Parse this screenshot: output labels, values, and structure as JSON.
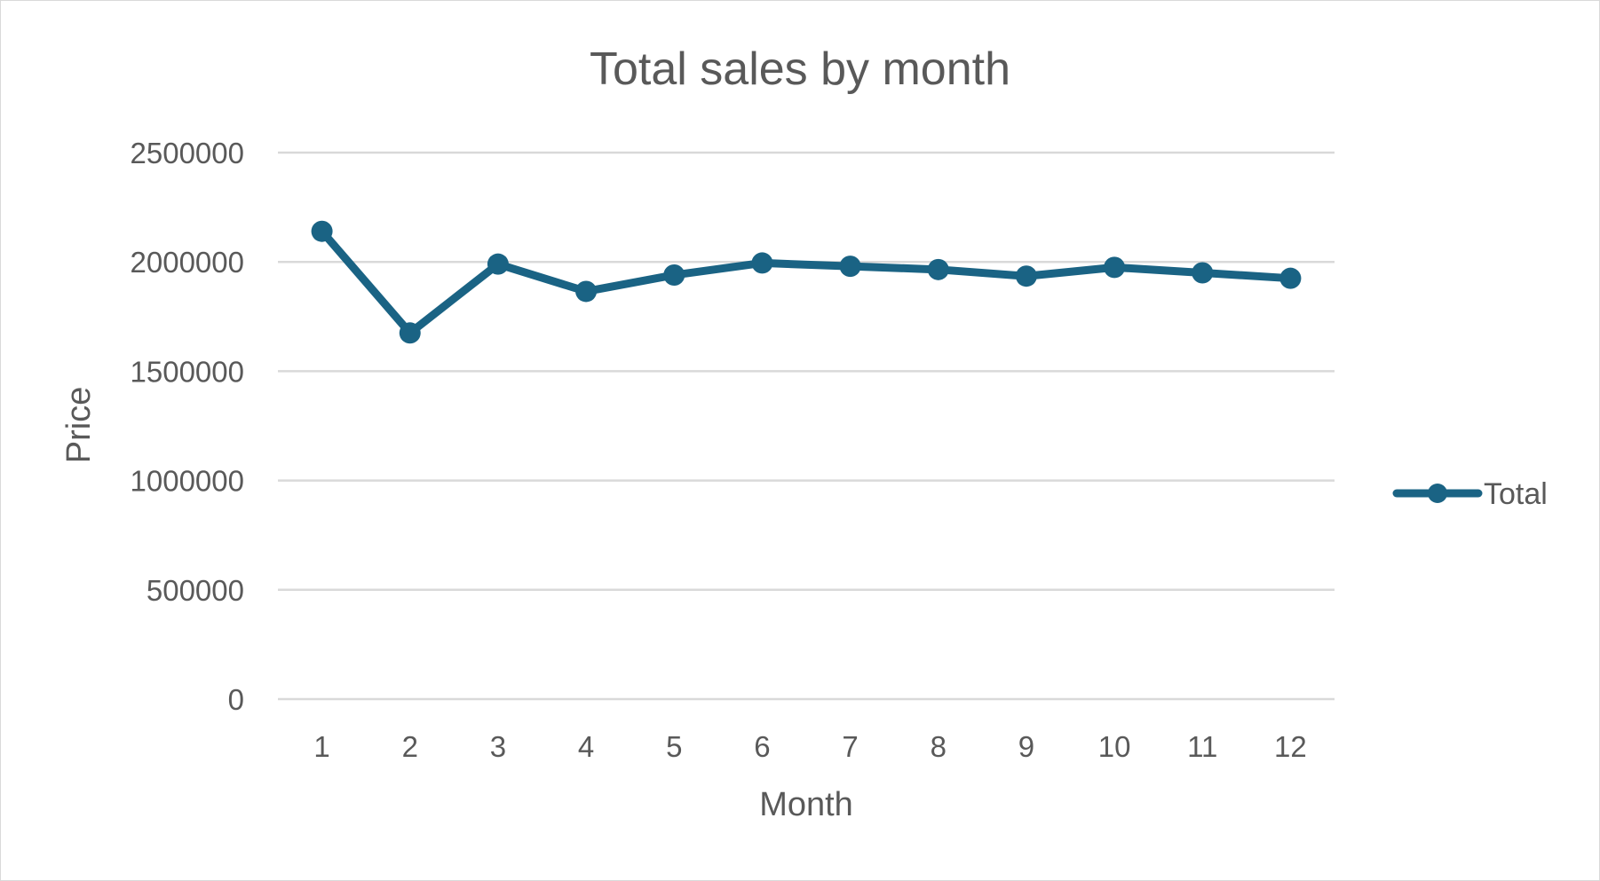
{
  "chart_data": {
    "type": "line",
    "title": "Total  sales by month",
    "xlabel": "Month",
    "ylabel": "Price",
    "categories": [
      "1",
      "2",
      "3",
      "4",
      "5",
      "6",
      "7",
      "8",
      "9",
      "10",
      "11",
      "12"
    ],
    "series": [
      {
        "name": "Total",
        "color": "#1a6384",
        "values": [
          2140000,
          1675000,
          1990000,
          1865000,
          1940000,
          1995000,
          1980000,
          1965000,
          1935000,
          1975000,
          1950000,
          1925000
        ]
      }
    ],
    "ylim": [
      0,
      2500000
    ],
    "yticks": [
      "0",
      "500000",
      "1000000",
      "1500000",
      "2000000",
      "2500000"
    ],
    "grid": true,
    "legend_position": "right"
  }
}
